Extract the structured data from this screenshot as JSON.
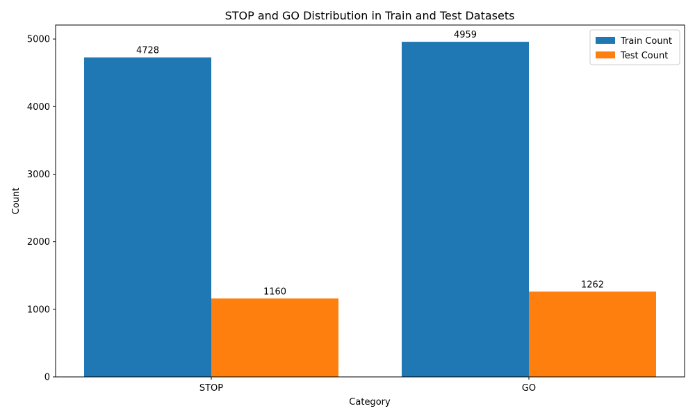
{
  "chart_data": {
    "type": "bar",
    "title": "STOP and GO Distribution in Train and Test Datasets",
    "xlabel": "Category",
    "ylabel": "Count",
    "categories": [
      "STOP",
      "GO"
    ],
    "series": [
      {
        "name": "Train Count",
        "values": [
          4728,
          4959
        ],
        "color": "#1f77b4"
      },
      {
        "name": "Test Count",
        "values": [
          1160,
          1262
        ],
        "color": "#ff7f0e"
      }
    ],
    "ylim": [
      0,
      5207
    ],
    "yticks": [
      0,
      1000,
      2000,
      3000,
      4000,
      5000
    ],
    "legend_position": "top-right",
    "grid": false
  }
}
